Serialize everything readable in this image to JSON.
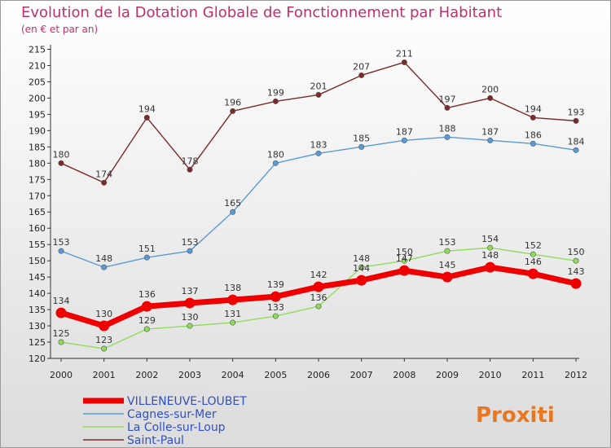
{
  "chart_data": {
    "type": "line",
    "title": "Evolution de la Dotation Globale de Fonctionnement par Habitant",
    "subtitle": "(en € et par an)",
    "x": [
      2000,
      2001,
      2002,
      2003,
      2004,
      2005,
      2006,
      2007,
      2008,
      2009,
      2010,
      2011,
      2012
    ],
    "x_tick_labels": [
      "2000",
      "2001",
      "2002",
      "2003",
      "2004",
      "2005",
      "2006",
      "2007",
      "2008",
      "2009",
      "2010",
      "2011",
      "2012"
    ],
    "ylim": [
      120,
      215
    ],
    "y_ticks": [
      120,
      125,
      130,
      135,
      140,
      145,
      150,
      155,
      160,
      165,
      170,
      175,
      180,
      185,
      190,
      195,
      200,
      205,
      210,
      215
    ],
    "grid": false,
    "legend_position": "bottom-left",
    "series": [
      {
        "name": "Saint-Paul",
        "color": "#7a2a2a",
        "values": [
          180,
          174,
          194,
          178,
          196,
          199,
          201,
          207,
          211,
          197,
          200,
          194,
          193
        ],
        "style": "thin"
      },
      {
        "name": "Cagnes-sur-Mer",
        "color": "#5b9bd5",
        "values": [
          153,
          148,
          151,
          153,
          165,
          180,
          183,
          185,
          187,
          188,
          187,
          186,
          184
        ],
        "style": "thin"
      },
      {
        "name": "La Colle-sur-Loup",
        "color": "#8fdc5a",
        "values": [
          125,
          123,
          129,
          130,
          131,
          133,
          136,
          148,
          150,
          153,
          154,
          152,
          150
        ],
        "style": "thin"
      },
      {
        "name": "VILLENEUVE-LOUBET",
        "color": "#ee0000",
        "values": [
          134,
          130,
          136,
          137,
          138,
          139,
          142,
          144,
          147,
          145,
          148,
          146,
          143
        ],
        "style": "thick"
      }
    ],
    "legend_order": [
      "VILLENEUVE-LOUBET",
      "Cagnes-sur-Mer",
      "La Colle-sur-Loup",
      "Saint-Paul"
    ]
  },
  "logo": {
    "text": "Proxiti"
  }
}
